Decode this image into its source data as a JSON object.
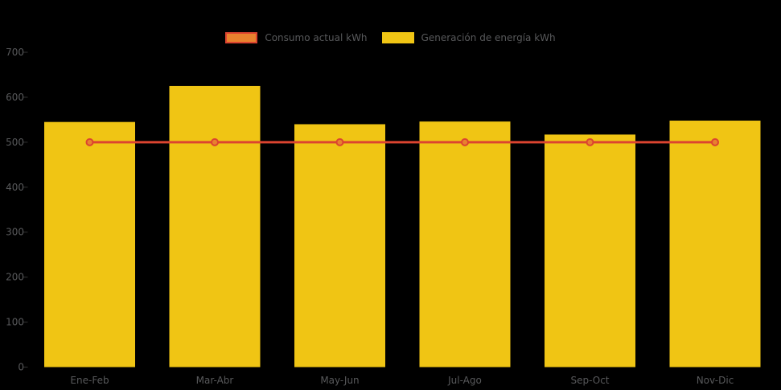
{
  "chart": {
    "background": "#000000",
    "text_color": "#58595b",
    "tick_color": "#333333"
  },
  "legend": {
    "items": [
      {
        "label": "Consumo actual kWh",
        "fill": "#e8822e",
        "border": "#dc4430"
      },
      {
        "label": "Generación de energía kWh",
        "fill": "#f0c514",
        "border": "#f0c514"
      }
    ]
  },
  "chart_data": {
    "type": "bar",
    "categories": [
      "Ene-Feb",
      "Mar-Abr",
      "May-Jun",
      "Jul-Ago",
      "Sep-Oct",
      "Nov-Dic"
    ],
    "series": [
      {
        "name": "Consumo actual kWh",
        "type": "line",
        "values": [
          500,
          500,
          500,
          500,
          500,
          500
        ],
        "color": "#dc4430",
        "marker_fill": "#e8822e"
      },
      {
        "name": "Generación de energía kWh",
        "type": "bar",
        "values": [
          545,
          625,
          540,
          546,
          517,
          548
        ],
        "color": "#f0c514"
      }
    ],
    "title": "",
    "xlabel": "",
    "ylabel": "",
    "ylim": [
      0,
      700
    ],
    "ytick_step": 100,
    "legend_position": "top",
    "grid": false
  }
}
